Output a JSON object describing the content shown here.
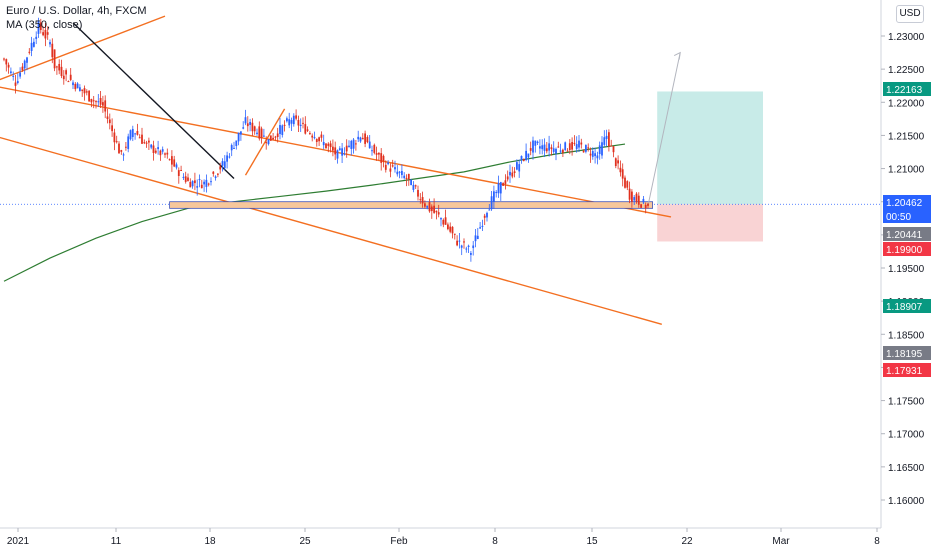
{
  "header": {
    "symbol": "Euro / U.S. Dollar, 4h, FXCM",
    "indicator": "MA (350, close)"
  },
  "currency_label": "USD",
  "colors": {
    "up": "#2962ff",
    "down": "#e0301e",
    "trend_orange": "#f36f21",
    "trend_black": "#131722",
    "ma_green": "#2e7d32",
    "zone_fill": "#f7c79b",
    "zone_stroke": "#3f51b5",
    "target_fill": "#c8ebe8",
    "stop_fill": "#f9d3d4",
    "label_current": "#2962ff",
    "label_target": "#089981",
    "label_stop": "#f23645",
    "label_grey": "#787b86"
  },
  "chart_data": {
    "type": "candlestick",
    "title": "Euro / U.S. Dollar, 4h, FXCM",
    "ylim": [
      1.155,
      1.235
    ],
    "y_ticks": [
      "1.23000",
      "1.22500",
      "1.22000",
      "1.21500",
      "1.21000",
      "1.20500",
      "1.20000",
      "1.19500",
      "1.19000",
      "1.18500",
      "1.18000",
      "1.17500",
      "1.17000",
      "1.16500",
      "1.16000"
    ],
    "x_ticks": [
      "2021",
      "11",
      "18",
      "25",
      "Feb",
      "8",
      "15",
      "22",
      "Mar",
      "8"
    ],
    "price_labels": [
      {
        "text": "1.22163",
        "value": 1.22163,
        "role": "target"
      },
      {
        "text": "1.20462",
        "value": 1.20462,
        "role": "current"
      },
      {
        "text": "00:50",
        "value": 1.2031,
        "role": "countdown"
      },
      {
        "text": "1.20441",
        "value": 1.20441,
        "role": "grey"
      },
      {
        "text": "1.19900",
        "value": 1.199,
        "role": "stop"
      },
      {
        "text": "1.18907",
        "value": 1.18907,
        "role": "target"
      },
      {
        "text": "1.18195",
        "value": 1.18195,
        "role": "grey"
      },
      {
        "text": "1.17931",
        "value": 1.17931,
        "role": "stop"
      }
    ],
    "series": [
      {
        "name": "EURUSD 4h",
        "kind": "candles",
        "anchors": [
          [
            0,
            1.2265
          ],
          [
            5,
            1.223
          ],
          [
            10,
            1.227
          ],
          [
            15,
            1.2315
          ],
          [
            20,
            1.229
          ],
          [
            22,
            1.2255
          ],
          [
            30,
            1.223
          ],
          [
            38,
            1.2205
          ],
          [
            43,
            1.2195
          ],
          [
            51,
            1.2118
          ],
          [
            56,
            1.216
          ],
          [
            62,
            1.2135
          ],
          [
            70,
            1.212
          ],
          [
            80,
            1.208
          ],
          [
            87,
            1.2078
          ],
          [
            95,
            1.2105
          ],
          [
            105,
            1.217
          ],
          [
            115,
            1.2142
          ],
          [
            125,
            1.2175
          ],
          [
            135,
            1.215
          ],
          [
            145,
            1.212
          ],
          [
            155,
            1.215
          ],
          [
            165,
            1.2108
          ],
          [
            175,
            1.2085
          ],
          [
            184,
            1.2042
          ],
          [
            190,
            1.2025
          ],
          [
            197,
            1.199
          ],
          [
            203,
            1.1975
          ],
          [
            210,
            1.204
          ],
          [
            215,
            1.207
          ],
          [
            220,
            1.209
          ],
          [
            230,
            1.2135
          ],
          [
            240,
            1.213
          ],
          [
            250,
            1.2135
          ],
          [
            258,
            1.212
          ],
          [
            262,
            1.215
          ],
          [
            267,
            1.21
          ],
          [
            272,
            1.206
          ],
          [
            280,
            1.2042
          ]
        ]
      },
      {
        "name": "MA (350, close)",
        "kind": "line",
        "x": [
          0,
          20,
          40,
          60,
          80,
          100,
          120,
          140,
          160,
          180,
          200,
          220,
          240,
          260,
          270
        ],
        "y": [
          1.193,
          1.1965,
          1.1995,
          1.202,
          1.204,
          1.205,
          1.2058,
          1.2066,
          1.2075,
          1.2085,
          1.2095,
          1.211,
          1.2122,
          1.2132,
          1.2137
        ]
      }
    ],
    "trend_lines": [
      {
        "from": [
          -5,
          1.215
        ],
        "to": [
          286,
          1.1865
        ],
        "color": "orange"
      },
      {
        "from": [
          -5,
          1.2225
        ],
        "to": [
          290,
          1.2027
        ],
        "color": "orange"
      },
      {
        "from": [
          -5,
          1.223
        ],
        "to": [
          70,
          1.233
        ],
        "color": "orange"
      },
      {
        "from": [
          30,
          1.232
        ],
        "to": [
          100,
          1.2085
        ],
        "color": "black"
      },
      {
        "from": [
          105,
          1.209
        ],
        "to": [
          122,
          1.219
        ],
        "color": "orange"
      }
    ],
    "projection": {
      "from": [
        280,
        1.2044
      ],
      "to": [
        294,
        1.2275
      ]
    },
    "zones": {
      "support": {
        "from_x": 72,
        "to_x": 282,
        "low": 1.204,
        "high": 1.205
      },
      "target": {
        "from_x": 284,
        "to_x": 330,
        "low": 1.20462,
        "high": 1.22163
      },
      "stop": {
        "from_x": 284,
        "to_x": 330,
        "low": 1.199,
        "high": 1.20462
      }
    },
    "grid": false,
    "legend": "top-left"
  }
}
